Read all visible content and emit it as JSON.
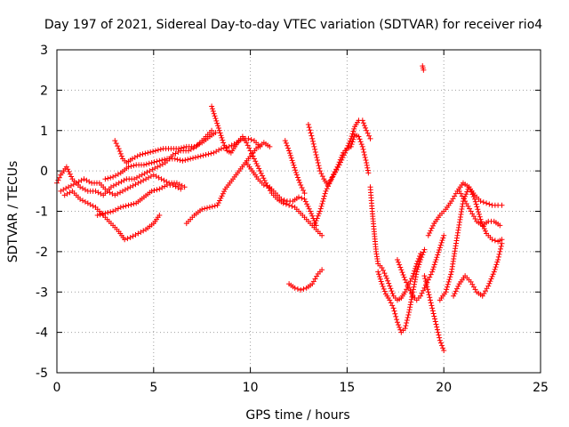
{
  "chart_data": {
    "type": "scatter",
    "title": "Day 197 of 2021, Sidereal Day-to-day VTEC variation (SDTVAR) for receiver rio4",
    "xlabel": "GPS time / hours",
    "ylabel": "SDTVAR / TECUs",
    "xlim": [
      0,
      25
    ],
    "ylim": [
      -5,
      3
    ],
    "xticks": [
      "0",
      "5",
      "10",
      "15",
      "20",
      "25"
    ],
    "yticks": [
      "-5",
      "-4",
      "-3",
      "-2",
      "-1",
      "0",
      "1",
      "2",
      "3"
    ],
    "grid": true,
    "marker": "+",
    "color": "#ff0000",
    "series": [
      {
        "name": "s1",
        "points": [
          [
            0,
            -0.3
          ],
          [
            0.2,
            -0.1
          ],
          [
            0.5,
            0.1
          ],
          [
            0.8,
            -0.2
          ],
          [
            1.2,
            -0.4
          ],
          [
            1.6,
            -0.5
          ],
          [
            2.0,
            -0.5
          ],
          [
            2.4,
            -0.6
          ],
          [
            2.8,
            -0.4
          ],
          [
            3.2,
            -0.3
          ],
          [
            3.6,
            -0.2
          ],
          [
            4.0,
            -0.2
          ],
          [
            4.4,
            -0.1
          ],
          [
            4.8,
            0.0
          ],
          [
            5.2,
            0.1
          ],
          [
            5.6,
            0.2
          ],
          [
            6.0,
            0.4
          ],
          [
            6.4,
            0.5
          ],
          [
            6.8,
            0.5
          ],
          [
            7.2,
            0.6
          ],
          [
            7.6,
            0.8
          ],
          [
            8.0,
            1.0
          ]
        ]
      },
      {
        "name": "s2",
        "points": [
          [
            0.2,
            -0.5
          ],
          [
            0.6,
            -0.4
          ],
          [
            1.0,
            -0.3
          ],
          [
            1.4,
            -0.2
          ],
          [
            1.8,
            -0.3
          ],
          [
            2.2,
            -0.3
          ],
          [
            2.6,
            -0.5
          ],
          [
            3.0,
            -0.6
          ],
          [
            3.4,
            -0.5
          ],
          [
            3.8,
            -0.4
          ],
          [
            4.2,
            -0.3
          ],
          [
            4.6,
            -0.2
          ],
          [
            5.0,
            -0.1
          ],
          [
            5.4,
            -0.2
          ],
          [
            5.8,
            -0.3
          ],
          [
            6.2,
            -0.3
          ],
          [
            6.6,
            -0.4
          ]
        ]
      },
      {
        "name": "s3",
        "points": [
          [
            0.4,
            -0.6
          ],
          [
            0.8,
            -0.5
          ],
          [
            1.2,
            -0.7
          ],
          [
            1.6,
            -0.8
          ],
          [
            2.0,
            -0.9
          ],
          [
            2.4,
            -1.1
          ],
          [
            2.8,
            -1.3
          ],
          [
            3.2,
            -1.5
          ],
          [
            3.5,
            -1.7
          ],
          [
            3.8,
            -1.65
          ],
          [
            4.2,
            -1.55
          ],
          [
            4.6,
            -1.45
          ],
          [
            5.0,
            -1.3
          ],
          [
            5.3,
            -1.1
          ]
        ]
      },
      {
        "name": "s4",
        "points": [
          [
            2.1,
            -1.1
          ],
          [
            2.5,
            -1.05
          ],
          [
            2.9,
            -1.0
          ],
          [
            3.3,
            -0.9
          ],
          [
            3.7,
            -0.85
          ],
          [
            4.1,
            -0.8
          ],
          [
            4.5,
            -0.65
          ],
          [
            4.9,
            -0.5
          ],
          [
            5.3,
            -0.45
          ],
          [
            5.7,
            -0.35
          ],
          [
            6.0,
            -0.35
          ],
          [
            6.4,
            -0.45
          ]
        ]
      },
      {
        "name": "s5",
        "points": [
          [
            3.0,
            0.75
          ],
          [
            3.2,
            0.55
          ],
          [
            3.4,
            0.3
          ],
          [
            3.6,
            0.2
          ],
          [
            3.9,
            0.3
          ],
          [
            4.3,
            0.4
          ],
          [
            4.7,
            0.45
          ],
          [
            5.1,
            0.5
          ],
          [
            5.5,
            0.55
          ],
          [
            5.9,
            0.55
          ],
          [
            6.3,
            0.55
          ],
          [
            6.7,
            0.6
          ],
          [
            7.1,
            0.6
          ],
          [
            7.5,
            0.7
          ],
          [
            7.9,
            0.85
          ],
          [
            8.2,
            0.95
          ]
        ]
      },
      {
        "name": "s6",
        "points": [
          [
            2.5,
            -0.2
          ],
          [
            2.9,
            -0.15
          ],
          [
            3.3,
            -0.05
          ],
          [
            3.7,
            0.1
          ],
          [
            4.1,
            0.15
          ],
          [
            4.5,
            0.15
          ],
          [
            4.9,
            0.2
          ],
          [
            5.3,
            0.25
          ],
          [
            5.7,
            0.3
          ],
          [
            6.1,
            0.3
          ],
          [
            6.5,
            0.25
          ],
          [
            6.9,
            0.3
          ],
          [
            7.3,
            0.35
          ],
          [
            7.7,
            0.4
          ],
          [
            8.1,
            0.45
          ],
          [
            8.5,
            0.55
          ],
          [
            8.9,
            0.6
          ],
          [
            9.3,
            0.7
          ],
          [
            9.6,
            0.8
          ],
          [
            9.9,
            0.8
          ],
          [
            10.2,
            0.75
          ],
          [
            10.5,
            0.6
          ]
        ]
      },
      {
        "name": "s7",
        "points": [
          [
            6.7,
            -1.3
          ],
          [
            7.1,
            -1.1
          ],
          [
            7.5,
            -0.95
          ],
          [
            7.9,
            -0.9
          ],
          [
            8.3,
            -0.85
          ],
          [
            8.7,
            -0.45
          ],
          [
            9.1,
            -0.2
          ],
          [
            9.5,
            0.05
          ],
          [
            9.9,
            0.3
          ],
          [
            10.3,
            0.55
          ],
          [
            10.7,
            0.7
          ],
          [
            11.0,
            0.6
          ]
        ]
      },
      {
        "name": "s8",
        "points": [
          [
            8.0,
            1.6
          ],
          [
            8.2,
            1.3
          ],
          [
            8.4,
            1.0
          ],
          [
            8.6,
            0.7
          ],
          [
            8.8,
            0.5
          ],
          [
            9.0,
            0.45
          ],
          [
            9.2,
            0.6
          ],
          [
            9.4,
            0.75
          ],
          [
            9.6,
            0.85
          ],
          [
            9.8,
            0.7
          ],
          [
            10.0,
            0.5
          ],
          [
            10.2,
            0.3
          ],
          [
            10.5,
            0.0
          ],
          [
            10.8,
            -0.3
          ],
          [
            11.1,
            -0.55
          ],
          [
            11.4,
            -0.7
          ],
          [
            11.7,
            -0.8
          ],
          [
            12.0,
            -0.85
          ],
          [
            12.3,
            -0.9
          ],
          [
            12.6,
            -1.05
          ],
          [
            12.9,
            -1.2
          ],
          [
            13.2,
            -1.35
          ],
          [
            13.5,
            -1.5
          ],
          [
            13.7,
            -1.6
          ]
        ]
      },
      {
        "name": "s9",
        "points": [
          [
            9.8,
            0.2
          ],
          [
            10.1,
            0.0
          ],
          [
            10.4,
            -0.2
          ],
          [
            10.7,
            -0.35
          ],
          [
            11.0,
            -0.4
          ],
          [
            11.3,
            -0.55
          ],
          [
            11.6,
            -0.7
          ],
          [
            11.9,
            -0.75
          ],
          [
            12.2,
            -0.75
          ],
          [
            12.5,
            -0.65
          ],
          [
            12.8,
            -0.7
          ],
          [
            13.1,
            -1.0
          ],
          [
            13.4,
            -1.35
          ]
        ]
      },
      {
        "name": "s10",
        "points": [
          [
            11.8,
            0.75
          ],
          [
            12.0,
            0.5
          ],
          [
            12.2,
            0.2
          ],
          [
            12.4,
            -0.1
          ],
          [
            12.6,
            -0.35
          ],
          [
            12.8,
            -0.55
          ]
        ]
      },
      {
        "name": "s11",
        "points": [
          [
            13.0,
            1.15
          ],
          [
            13.2,
            0.8
          ],
          [
            13.4,
            0.4
          ],
          [
            13.6,
            0.0
          ],
          [
            13.8,
            -0.2
          ],
          [
            14.0,
            -0.35
          ],
          [
            14.3,
            -0.1
          ],
          [
            14.6,
            0.15
          ],
          [
            14.9,
            0.45
          ],
          [
            15.2,
            0.8
          ],
          [
            15.4,
            1.1
          ],
          [
            15.6,
            1.25
          ],
          [
            15.8,
            1.25
          ],
          [
            16.0,
            1.0
          ],
          [
            16.2,
            0.8
          ]
        ]
      },
      {
        "name": "s12",
        "points": [
          [
            13.3,
            -1.35
          ],
          [
            13.6,
            -1.0
          ],
          [
            13.9,
            -0.5
          ],
          [
            14.2,
            -0.2
          ],
          [
            14.5,
            0.1
          ],
          [
            14.8,
            0.45
          ],
          [
            15.0,
            0.55
          ],
          [
            15.2,
            0.6
          ],
          [
            15.4,
            0.9
          ],
          [
            15.6,
            0.85
          ],
          [
            15.8,
            0.6
          ],
          [
            16.0,
            0.2
          ],
          [
            16.1,
            -0.05
          ]
        ]
      },
      {
        "name": "s13",
        "points": [
          [
            12.0,
            -2.8
          ],
          [
            12.3,
            -2.9
          ],
          [
            12.6,
            -2.95
          ],
          [
            12.9,
            -2.9
          ],
          [
            13.2,
            -2.8
          ],
          [
            13.5,
            -2.55
          ],
          [
            13.7,
            -2.45
          ]
        ]
      },
      {
        "name": "s14",
        "points": [
          [
            16.2,
            -0.4
          ],
          [
            16.3,
            -1.0
          ],
          [
            16.4,
            -1.5
          ],
          [
            16.5,
            -2.0
          ],
          [
            16.6,
            -2.3
          ],
          [
            16.8,
            -2.4
          ],
          [
            17.0,
            -2.6
          ],
          [
            17.2,
            -2.85
          ],
          [
            17.4,
            -3.1
          ],
          [
            17.6,
            -3.2
          ],
          [
            17.8,
            -3.15
          ],
          [
            18.0,
            -3.0
          ],
          [
            18.2,
            -2.8
          ],
          [
            18.4,
            -2.6
          ],
          [
            18.6,
            -2.3
          ],
          [
            18.8,
            -2.05
          ]
        ]
      },
      {
        "name": "s15",
        "points": [
          [
            16.6,
            -2.5
          ],
          [
            16.8,
            -2.8
          ],
          [
            17.0,
            -3.05
          ],
          [
            17.2,
            -3.2
          ],
          [
            17.4,
            -3.4
          ],
          [
            17.6,
            -3.75
          ],
          [
            17.8,
            -4.0
          ],
          [
            18.0,
            -3.9
          ],
          [
            18.2,
            -3.5
          ],
          [
            18.4,
            -3.0
          ],
          [
            18.6,
            -2.5
          ],
          [
            18.8,
            -2.2
          ],
          [
            19.0,
            -1.95
          ]
        ]
      },
      {
        "name": "s16",
        "points": [
          [
            17.6,
            -2.2
          ],
          [
            17.8,
            -2.45
          ],
          [
            18.0,
            -2.7
          ],
          [
            18.2,
            -2.9
          ],
          [
            18.4,
            -3.1
          ],
          [
            18.6,
            -3.2
          ],
          [
            18.8,
            -3.1
          ],
          [
            19.0,
            -2.9
          ],
          [
            19.2,
            -2.7
          ],
          [
            19.4,
            -2.5
          ],
          [
            19.6,
            -2.2
          ],
          [
            19.8,
            -1.9
          ],
          [
            20.0,
            -1.6
          ]
        ]
      },
      {
        "name": "s17",
        "points": [
          [
            19.0,
            -2.6
          ],
          [
            19.2,
            -3.0
          ],
          [
            19.4,
            -3.4
          ],
          [
            19.6,
            -3.8
          ],
          [
            19.8,
            -4.2
          ],
          [
            20.0,
            -4.45
          ]
        ]
      },
      {
        "name": "s18",
        "points": [
          [
            19.2,
            -1.6
          ],
          [
            19.5,
            -1.3
          ],
          [
            19.8,
            -1.1
          ],
          [
            20.1,
            -0.95
          ],
          [
            20.4,
            -0.75
          ],
          [
            20.7,
            -0.5
          ],
          [
            21.0,
            -0.3
          ],
          [
            21.3,
            -0.4
          ],
          [
            21.6,
            -0.6
          ],
          [
            21.9,
            -0.75
          ],
          [
            22.2,
            -0.8
          ],
          [
            22.5,
            -0.85
          ],
          [
            22.8,
            -0.85
          ],
          [
            23.0,
            -0.85
          ]
        ]
      },
      {
        "name": "s19",
        "points": [
          [
            20.5,
            -3.1
          ],
          [
            20.8,
            -2.8
          ],
          [
            21.1,
            -2.6
          ],
          [
            21.4,
            -2.75
          ],
          [
            21.7,
            -3.0
          ],
          [
            22.0,
            -3.1
          ],
          [
            22.3,
            -2.85
          ],
          [
            22.6,
            -2.5
          ],
          [
            22.8,
            -2.2
          ],
          [
            23.0,
            -1.8
          ]
        ]
      },
      {
        "name": "s20",
        "points": [
          [
            20.8,
            -0.5
          ],
          [
            21.1,
            -0.75
          ],
          [
            21.4,
            -1.0
          ],
          [
            21.7,
            -1.25
          ],
          [
            22.0,
            -1.35
          ],
          [
            22.3,
            -1.25
          ],
          [
            22.6,
            -1.25
          ],
          [
            22.9,
            -1.35
          ]
        ]
      },
      {
        "name": "s21",
        "points": [
          [
            19.8,
            -3.2
          ],
          [
            20.1,
            -3.0
          ],
          [
            20.4,
            -2.5
          ],
          [
            20.7,
            -1.6
          ],
          [
            21.0,
            -0.75
          ],
          [
            21.3,
            -0.4
          ],
          [
            21.6,
            -0.7
          ],
          [
            21.9,
            -1.2
          ],
          [
            22.2,
            -1.55
          ],
          [
            22.5,
            -1.7
          ],
          [
            22.8,
            -1.75
          ],
          [
            23.0,
            -1.7
          ]
        ]
      },
      {
        "name": "s22",
        "points": [
          [
            18.9,
            2.6
          ],
          [
            18.95,
            2.5
          ]
        ]
      }
    ]
  }
}
